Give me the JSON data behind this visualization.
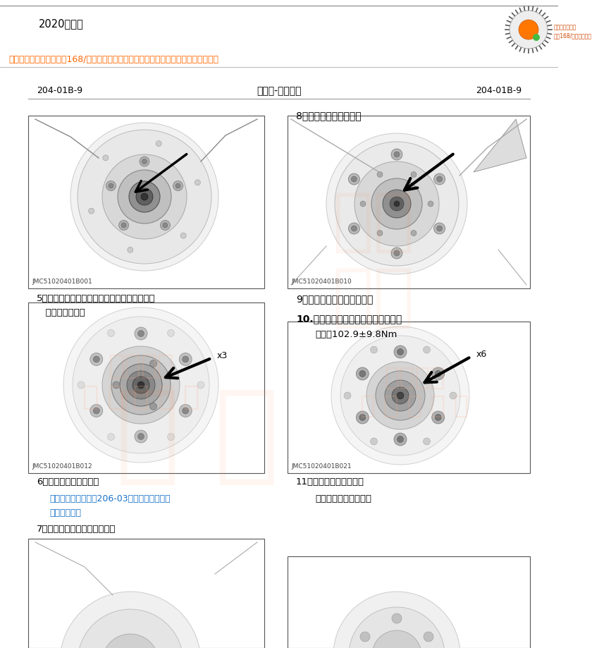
{
  "title_model": "2020新宝典",
  "header_ad": "汽修帮手在线资料库会员168/年，全球车型资料免费查询（扫码右边二维码即可查看）",
  "page_left": "204-01B-9",
  "page_center": "前悬架-四轮驱动",
  "page_right": "204-01B-9",
  "step5_line1": "5．拆卸前轮毂轴承螺母锁止垫圈固定螺栓，并",
  "step5_line2": "   取下锁止垫圈。",
  "step6_text": "6．拆卸前制动钳支架。",
  "step6_ref1": "参考：制动钳支架（206-03前盘式制动器，拆",
  "step6_ref2": "卸与安装）。",
  "step7_text": "7．拆卸前轮毂轴承固定螺母。",
  "step8_text": "8．取下前轮毂外轴承。",
  "step9_text": "9．取下前轮毂带前制动盘。",
  "step10_text": "10.拆卸前轮毂与前制动盘连接螺栓。",
  "step10_torque": "扭矩：102.9±9.8Nm",
  "step11_text": "11．拆卸外侧轴承座圈。",
  "step11_tool": "通用工具：两脚拔出器",
  "img1_label": "JMC51020401B001",
  "img2_label": "JMC51020401B010",
  "img3_label": "JMC51020401B012",
  "img4_label": "JMC51020401B021",
  "bg_color": "#ffffff",
  "header_color": "#ff6600",
  "ref_color": "#1a73c8",
  "line_color": "#aaaaaa",
  "watermark_lines": [
    "汽修帮手在线",
    "资 料 库"
  ],
  "watermark_color": "#ffaa88",
  "watermark_alpha": 0.18
}
